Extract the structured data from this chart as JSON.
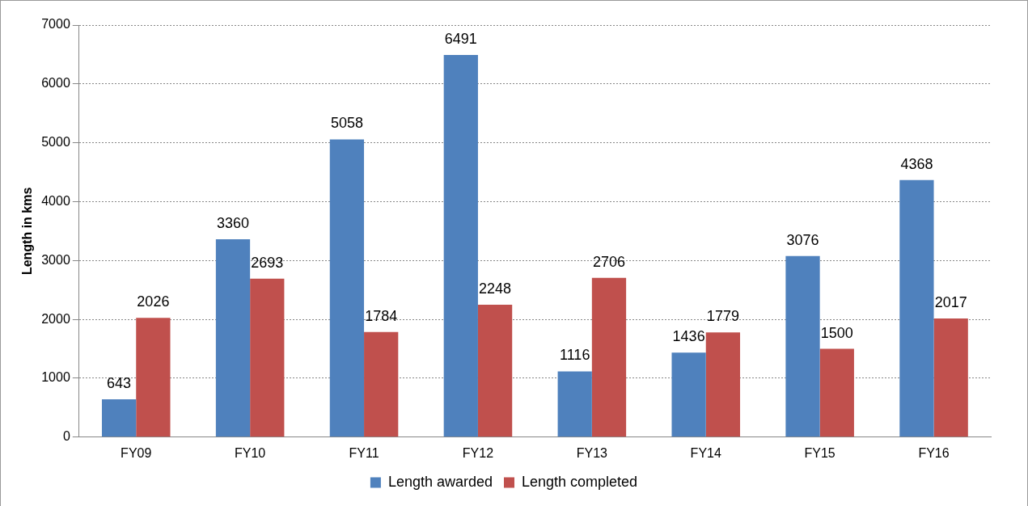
{
  "chart_data": {
    "type": "bar",
    "ylabel": "Length in kms",
    "categories": [
      "FY09",
      "FY10",
      "FY11",
      "FY12",
      "FY13",
      "FY14",
      "FY15",
      "FY16"
    ],
    "series": [
      {
        "name": "Length awarded",
        "color": "#4f81bd",
        "values": [
          643,
          3360,
          5058,
          6491,
          1116,
          1436,
          3076,
          4368
        ]
      },
      {
        "name": "Length completed",
        "color": "#c0504d",
        "values": [
          2026,
          2693,
          1784,
          2248,
          2706,
          1779,
          1500,
          2017
        ]
      }
    ],
    "ylim": [
      0,
      7000
    ],
    "yticks": [
      0,
      1000,
      2000,
      3000,
      4000,
      5000,
      6000,
      7000
    ],
    "grid": "y",
    "legend": "bottom",
    "data_labels": true
  }
}
